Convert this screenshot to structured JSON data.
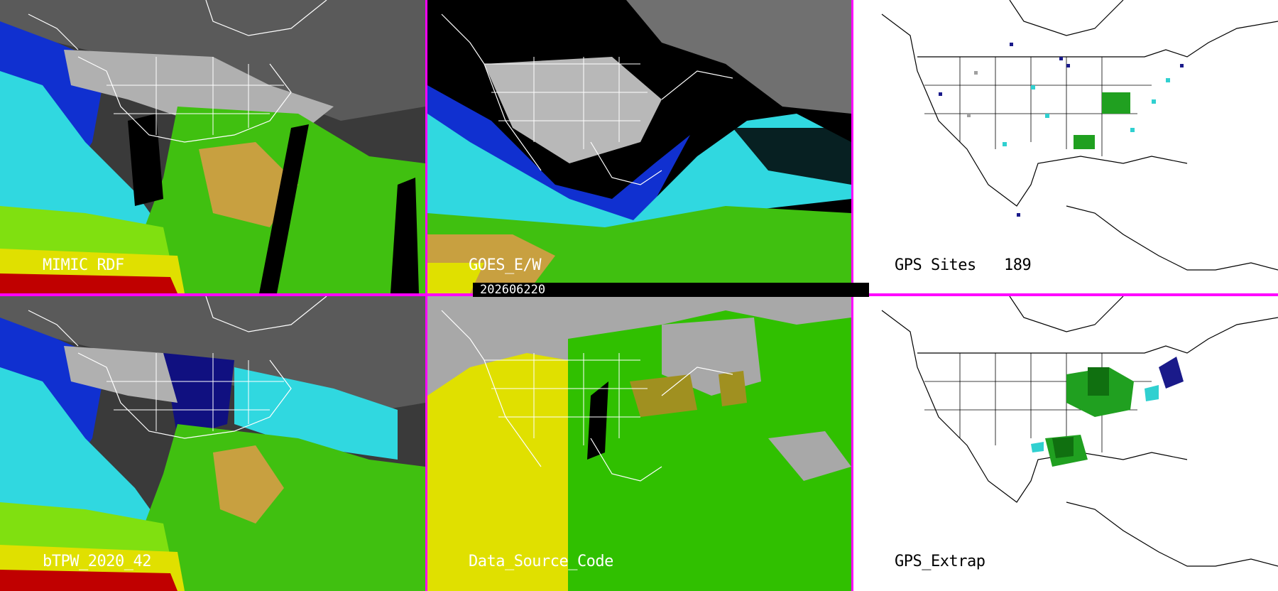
{
  "panels": {
    "mimic_rdf": {
      "label": "MIMIC RDF"
    },
    "goes_ew": {
      "label": "GOES_E/W"
    },
    "gps_sites": {
      "label": "GPS Sites",
      "count": "189"
    },
    "btpw": {
      "label": "bTPW_2020_42"
    },
    "data_source_code": {
      "label": "Data_Source_Code"
    },
    "gps_extrap": {
      "label": "GPS_Extrap"
    }
  },
  "timestamp": "202606220",
  "colors": {
    "divider": "#ff00ff",
    "tpw_dry": "#101080",
    "tpw_blue": "#1030d0",
    "tpw_cyan": "#30d8e0",
    "tpw_green": "#40c010",
    "tpw_lime": "#80e010",
    "tpw_tan": "#c8a040",
    "tpw_yellow": "#e0e000",
    "tpw_red": "#c00000",
    "src_gray": "#a8a8a8",
    "src_yellow": "#e0e000",
    "src_green": "#30c000",
    "src_olive": "#a09020",
    "gps_navy": "#1a1a8a",
    "gps_cyan": "#30d0d0",
    "gps_green": "#20a020",
    "gps_gray": "#a0a0a0"
  }
}
